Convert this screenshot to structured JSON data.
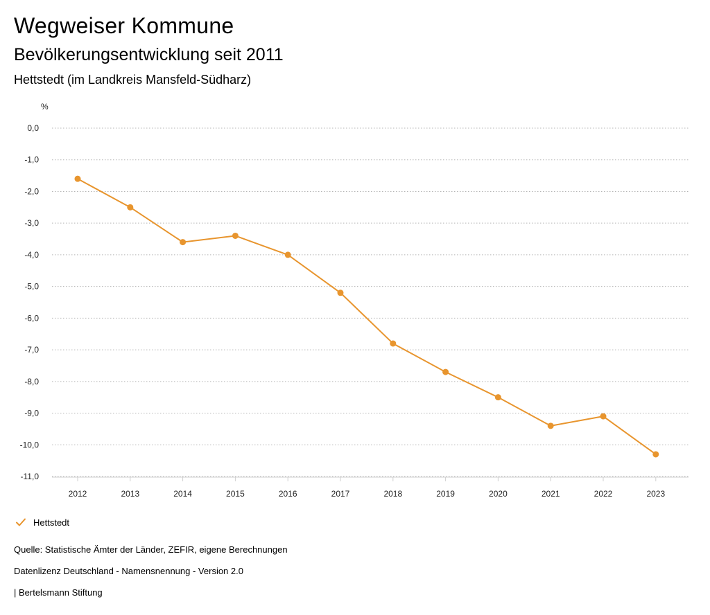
{
  "header": {
    "title": "Wegweiser Kommune",
    "subtitle": "Bevölkerungsentwicklung seit 2011",
    "region": "Hettstedt (im Landkreis Mansfeld-Südharz)"
  },
  "chart_data": {
    "type": "line",
    "ylabel": "%",
    "xlabel": "",
    "x": [
      "2012",
      "2013",
      "2014",
      "2015",
      "2016",
      "2017",
      "2018",
      "2019",
      "2020",
      "2021",
      "2022",
      "2023"
    ],
    "series": [
      {
        "name": "Hettstedt",
        "values": [
          -1.6,
          -2.5,
          -3.6,
          -3.4,
          -4.0,
          -5.2,
          -6.8,
          -7.7,
          -8.5,
          -9.4,
          -9.1,
          -10.3
        ]
      }
    ],
    "ylim": [
      -11,
      0
    ],
    "yticks": [
      0,
      -1,
      -2,
      -3,
      -4,
      -5,
      -6,
      -7,
      -8,
      -9,
      -10,
      -11
    ],
    "ytick_labels": [
      "0,0",
      "-1,0",
      "-2,0",
      "-3,0",
      "-4,0",
      "-5,0",
      "-6,0",
      "-7,0",
      "-8,0",
      "-9,0",
      "-10,0",
      "-11,0"
    ],
    "grid": true,
    "legend": "bottom-left",
    "color": "#e8952e"
  },
  "legend": {
    "label": "Hettstedt"
  },
  "footer": {
    "source": "Quelle: Statistische Ämter der Länder, ZEFIR, eigene Berechnungen",
    "license": "Datenlizenz Deutschland - Namensnennung - Version 2.0",
    "publisher": "| Bertelsmann Stiftung"
  }
}
